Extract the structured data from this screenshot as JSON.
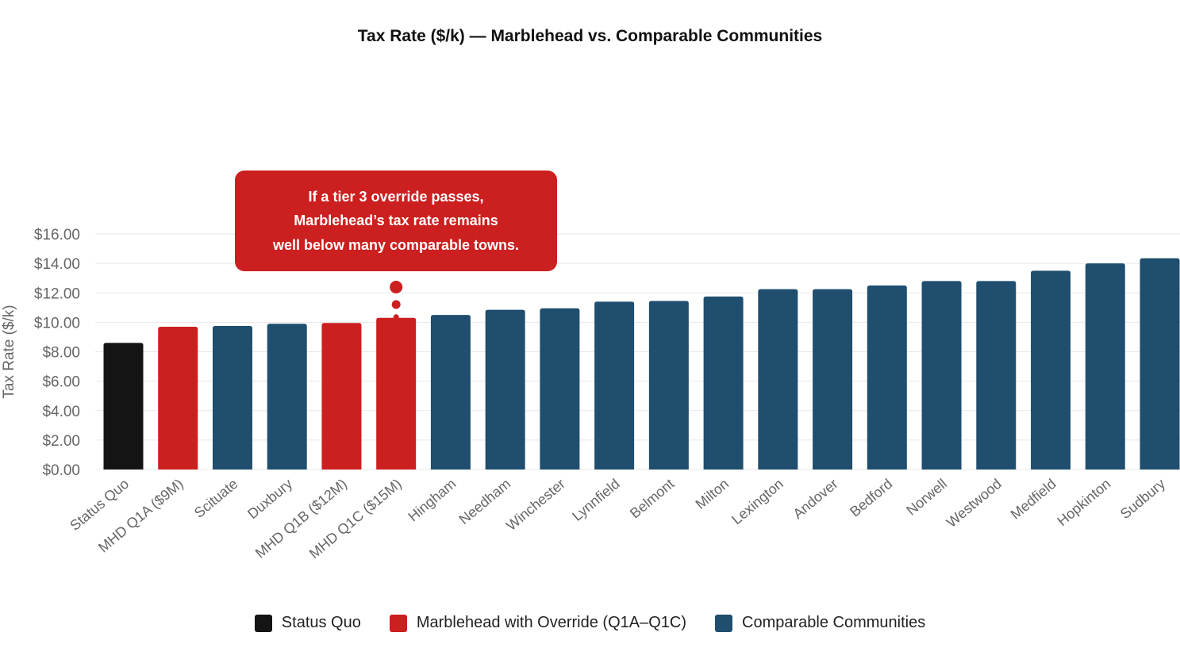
{
  "title": "Tax Rate ($/k) — Marblehead vs. Comparable Communities",
  "colors": {
    "status_quo": "#141414",
    "override": "#cc1f1f",
    "comparable": "#1f4e6e",
    "grid": "#e8e8e8",
    "axis_text": "#666666"
  },
  "callout": {
    "lines": [
      "If a tier 3 override passes,",
      "Marblehead’s tax rate remains",
      "well below many comparable towns."
    ]
  },
  "legend": [
    {
      "label": "Status Quo",
      "color": "#141414"
    },
    {
      "label": "Marblehead with Override (Q1A–Q1C)",
      "color": "#cc1f1f"
    },
    {
      "label": "Comparable Communities",
      "color": "#1f4e6e"
    }
  ],
  "chart_data": {
    "type": "bar",
    "title": "Tax Rate ($/k) — Marblehead vs. Comparable Communities",
    "xlabel": "",
    "ylabel": "Tax Rate ($/k)",
    "ylim": [
      0,
      16
    ],
    "yticks": [
      "$0.00",
      "$2.00",
      "$4.00",
      "$6.00",
      "$8.00",
      "$10.00",
      "$12.00",
      "$14.00",
      "$16.00"
    ],
    "grid": true,
    "legend_position": "bottom-center",
    "categories": [
      "Status Quo",
      "MHD Q1A ($9M)",
      "Scituate",
      "Duxbury",
      "MHD Q1B ($12M)",
      "MHD Q1C ($15M)",
      "Hingham",
      "Needham",
      "Winchester",
      "Lynnfield",
      "Belmont",
      "Milton",
      "Lexington",
      "Andover",
      "Bedford",
      "Norwell",
      "Westwood",
      "Medfield",
      "Hopkinton",
      "Sudbury"
    ],
    "values": [
      8.6,
      9.7,
      9.75,
      9.9,
      9.95,
      10.3,
      10.5,
      10.85,
      10.95,
      11.4,
      11.45,
      11.75,
      12.25,
      12.25,
      12.5,
      12.8,
      12.8,
      13.5,
      14.0,
      14.35
    ],
    "groups": [
      "Status Quo",
      "Marblehead with Override (Q1A–Q1C)",
      "Comparable Communities",
      "Comparable Communities",
      "Marblehead with Override (Q1A–Q1C)",
      "Marblehead with Override (Q1A–Q1C)",
      "Comparable Communities",
      "Comparable Communities",
      "Comparable Communities",
      "Comparable Communities",
      "Comparable Communities",
      "Comparable Communities",
      "Comparable Communities",
      "Comparable Communities",
      "Comparable Communities",
      "Comparable Communities",
      "Comparable Communities",
      "Comparable Communities",
      "Comparable Communities",
      "Comparable Communities"
    ],
    "annotation_target": "MHD Q1C ($15M)"
  }
}
